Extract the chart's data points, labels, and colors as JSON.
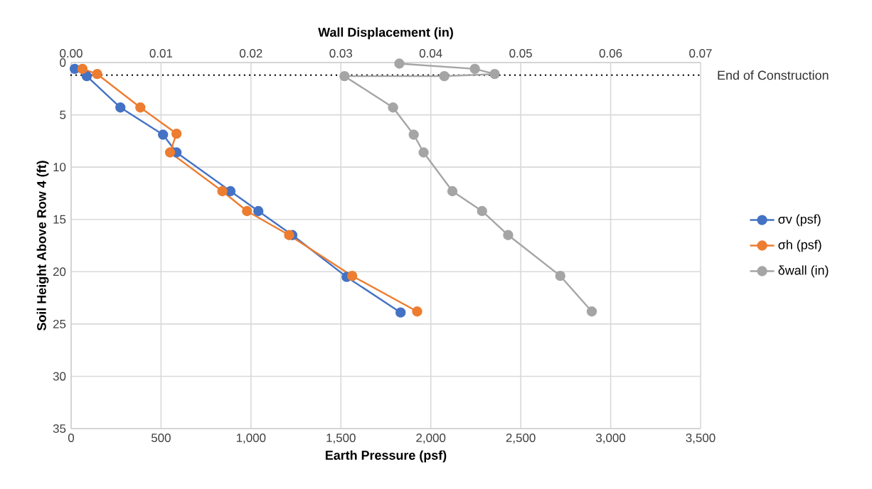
{
  "chart_data": {
    "type": "line",
    "xlabel": "Earth Pressure (psf)",
    "x2label": "Wall Displacement (in)",
    "ylabel": "Soil Height Above Row 4 (ft)",
    "xlim": [
      0,
      3500
    ],
    "xticks": [
      0,
      500,
      {
        "value": 1000,
        "label": "1,000"
      },
      {
        "value": 1500,
        "label": "1,500"
      },
      {
        "value": 2000,
        "label": "2,000"
      },
      {
        "value": 2500,
        "label": "2,500"
      },
      {
        "value": 3000,
        "label": "3,000"
      },
      {
        "value": 3500,
        "label": "3,500"
      }
    ],
    "x2lim": [
      0,
      0.07
    ],
    "x2ticks": [
      {
        "value": 0,
        "label": "0.00"
      },
      {
        "value": 0.01,
        "label": "0.01"
      },
      {
        "value": 0.02,
        "label": "0.02"
      },
      {
        "value": 0.03,
        "label": "0.03"
      },
      {
        "value": 0.04,
        "label": "0.04"
      },
      {
        "value": 0.05,
        "label": "0.05"
      },
      {
        "value": 0.06,
        "label": "0.06"
      },
      {
        "value": 0.07,
        "label": "0.07"
      }
    ],
    "ylim": [
      35,
      0
    ],
    "yticks": [
      0,
      5,
      10,
      15,
      20,
      25,
      30,
      35
    ],
    "grid": true,
    "legend": "right",
    "marker": "circle",
    "line_style": "solid",
    "ref_lines": [
      {
        "axis": "y",
        "value": 1.2,
        "label": "End of Construction",
        "color": "#000000",
        "line_style": "dotted"
      }
    ],
    "series": [
      {
        "name": "σv (psf)",
        "color": "#4472c4",
        "x": [
          20,
          87,
          274,
          511,
          586,
          886,
          1041,
          1230,
          1532,
          1832
        ],
        "values": [
          0.6,
          1.3,
          4.3,
          6.9,
          8.6,
          12.3,
          14.2,
          16.5,
          20.5,
          23.9
        ]
      },
      {
        "name": "σh (psf)",
        "color": "#ed7d31",
        "x": [
          63,
          145,
          385,
          586,
          550,
          841,
          978,
          1212,
          1563,
          1924
        ],
        "values": [
          0.6,
          1.1,
          4.3,
          6.8,
          8.6,
          12.3,
          14.2,
          16.5,
          20.4,
          23.8
        ]
      },
      {
        "name": "δwall (in)",
        "color": "#a5a5a5",
        "axis": "x2",
        "x": [
          0.0365,
          0.0449,
          0.0471,
          0.0415,
          0.0304,
          0.0358,
          0.0381,
          0.0392,
          0.0424,
          0.0457,
          0.0486,
          0.0544,
          0.0579
        ],
        "values": [
          0.1,
          0.6,
          1.1,
          1.3,
          1.3,
          4.3,
          6.9,
          8.6,
          12.3,
          14.2,
          16.5,
          20.4,
          23.8
        ]
      }
    ]
  }
}
